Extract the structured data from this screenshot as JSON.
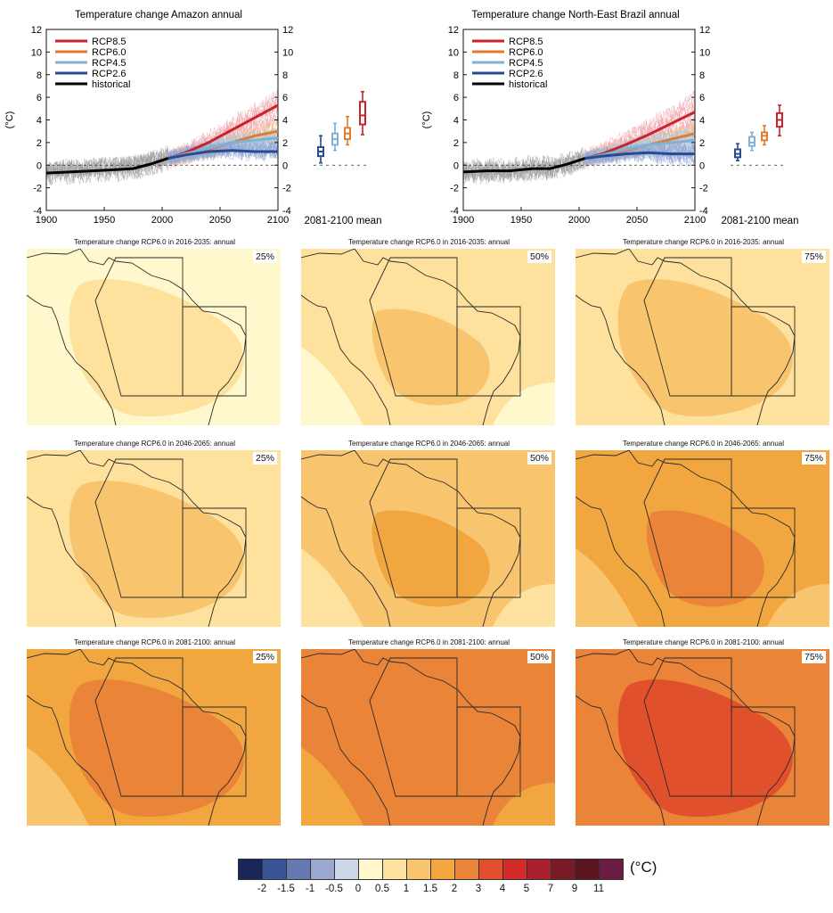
{
  "chart_data": [
    {
      "type": "line",
      "title": "Temperature change Amazon annual",
      "ylabel": "(°C)",
      "xlim": [
        1900,
        2100
      ],
      "ylim": [
        -4,
        12
      ],
      "xticks": [
        "1900",
        "1950",
        "2000",
        "2050",
        "2100"
      ],
      "yticks": [
        "-4",
        "-2",
        "0",
        "2",
        "4",
        "6",
        "8",
        "10",
        "12"
      ],
      "legend_position": "top-left",
      "series": [
        {
          "name": "RCP8.5",
          "color": "#c9232c",
          "x": [
            2005,
            2020,
            2040,
            2060,
            2080,
            2100
          ],
          "values": [
            0.6,
            1.1,
            2.0,
            3.1,
            4.2,
            5.3
          ]
        },
        {
          "name": "RCP6.0",
          "color": "#e07b30",
          "x": [
            2005,
            2020,
            2040,
            2060,
            2080,
            2100
          ],
          "values": [
            0.6,
            0.9,
            1.4,
            2.0,
            2.6,
            3.0
          ]
        },
        {
          "name": "RCP4.5",
          "color": "#7fb1d5",
          "x": [
            2005,
            2020,
            2040,
            2060,
            2080,
            2100
          ],
          "values": [
            0.6,
            1.0,
            1.5,
            2.0,
            2.2,
            2.4
          ]
        },
        {
          "name": "RCP2.6",
          "color": "#2a4a8f",
          "x": [
            2005,
            2020,
            2040,
            2060,
            2080,
            2100
          ],
          "values": [
            0.6,
            0.9,
            1.2,
            1.3,
            1.2,
            1.2
          ]
        },
        {
          "name": "historical",
          "color": "#000000",
          "x": [
            1900,
            1920,
            1940,
            1960,
            1975,
            1990,
            2005
          ],
          "values": [
            -0.7,
            -0.6,
            -0.5,
            -0.4,
            -0.3,
            0.1,
            0.6
          ]
        }
      ],
      "boxplots": {
        "label": "2081-2100 mean",
        "items": [
          {
            "name": "RCP2.6",
            "color": "#2a4a8f",
            "min": 0.2,
            "q1": 0.8,
            "median": 1.2,
            "q3": 1.6,
            "max": 2.6
          },
          {
            "name": "RCP4.5",
            "color": "#7fb1d5",
            "min": 1.3,
            "q1": 1.8,
            "median": 2.3,
            "q3": 2.8,
            "max": 3.7
          },
          {
            "name": "RCP6.0",
            "color": "#e07b30",
            "min": 1.8,
            "q1": 2.3,
            "median": 2.8,
            "q3": 3.3,
            "max": 4.3
          },
          {
            "name": "RCP8.5",
            "color": "#c9232c",
            "min": 2.7,
            "q1": 3.6,
            "median": 4.4,
            "q3": 5.6,
            "max": 6.5
          }
        ]
      }
    },
    {
      "type": "line",
      "title": "Temperature change North-East Brazil annual",
      "ylabel": "(°C)",
      "xlim": [
        1900,
        2100
      ],
      "ylim": [
        -4,
        12
      ],
      "xticks": [
        "1900",
        "1950",
        "2000",
        "2050",
        "2100"
      ],
      "yticks": [
        "-4",
        "-2",
        "0",
        "2",
        "4",
        "6",
        "8",
        "10",
        "12"
      ],
      "legend_position": "top-left",
      "series": [
        {
          "name": "RCP8.5",
          "color": "#c9232c",
          "x": [
            2005,
            2020,
            2040,
            2060,
            2080,
            2100
          ],
          "values": [
            0.6,
            1.0,
            1.8,
            2.7,
            3.7,
            4.7
          ]
        },
        {
          "name": "RCP6.0",
          "color": "#e07b30",
          "x": [
            2005,
            2020,
            2040,
            2060,
            2080,
            2100
          ],
          "values": [
            0.6,
            0.9,
            1.3,
            1.8,
            2.3,
            2.8
          ]
        },
        {
          "name": "RCP4.5",
          "color": "#7fb1d5",
          "x": [
            2005,
            2020,
            2040,
            2060,
            2080,
            2100
          ],
          "values": [
            0.6,
            0.9,
            1.4,
            1.8,
            2.0,
            2.2
          ]
        },
        {
          "name": "RCP2.6",
          "color": "#2a4a8f",
          "x": [
            2005,
            2020,
            2040,
            2060,
            2080,
            2100
          ],
          "values": [
            0.6,
            0.8,
            1.0,
            1.1,
            1.0,
            1.0
          ]
        },
        {
          "name": "historical",
          "color": "#000000",
          "x": [
            1900,
            1920,
            1940,
            1960,
            1975,
            1990,
            2005
          ],
          "values": [
            -0.6,
            -0.5,
            -0.5,
            -0.3,
            -0.3,
            0.1,
            0.6
          ]
        }
      ],
      "boxplots": {
        "label": "2081-2100 mean",
        "items": [
          {
            "name": "RCP2.6",
            "color": "#2a4a8f",
            "min": 0.4,
            "q1": 0.7,
            "median": 1.0,
            "q3": 1.4,
            "max": 1.9
          },
          {
            "name": "RCP4.5",
            "color": "#7fb1d5",
            "min": 1.3,
            "q1": 1.7,
            "median": 2.0,
            "q3": 2.5,
            "max": 2.9
          },
          {
            "name": "RCP6.0",
            "color": "#e07b30",
            "min": 1.8,
            "q1": 2.2,
            "median": 2.6,
            "q3": 2.9,
            "max": 3.5
          },
          {
            "name": "RCP8.5",
            "color": "#c9232c",
            "min": 2.6,
            "q1": 3.4,
            "median": 4.0,
            "q3": 4.6,
            "max": 5.3
          }
        ]
      }
    },
    {
      "type": "heatmap",
      "panels": [
        {
          "title": "Temperature change RCP6.0 in 2016-2035: annual",
          "percentile": "25%",
          "level": 0.5
        },
        {
          "title": "Temperature change RCP6.0 in 2016-2035: annual",
          "percentile": "50%",
          "level": 0.8
        },
        {
          "title": "Temperature change RCP6.0 in 2016-2035: annual",
          "percentile": "75%",
          "level": 1.1
        },
        {
          "title": "Temperature change RCP6.0 in 2046-2065: annual",
          "percentile": "25%",
          "level": 1.1
        },
        {
          "title": "Temperature change RCP6.0 in 2046-2065: annual",
          "percentile": "50%",
          "level": 1.4
        },
        {
          "title": "Temperature change RCP6.0 in 2046-2065: annual",
          "percentile": "75%",
          "level": 1.8
        },
        {
          "title": "Temperature change RCP6.0 in 2081-2100: annual",
          "percentile": "25%",
          "level": 2.0
        },
        {
          "title": "Temperature change RCP6.0 in 2081-2100: annual",
          "percentile": "50%",
          "level": 2.3
        },
        {
          "title": "Temperature change RCP6.0 in 2081-2100: annual",
          "percentile": "75%",
          "level": 3.0
        }
      ],
      "colorbar": {
        "unit": "(°C)",
        "colors": [
          "#1a2558",
          "#3a5596",
          "#6679b0",
          "#99a8cc",
          "#cdd6e6",
          "#fff8cc",
          "#fde19c",
          "#f8c46e",
          "#f1a640",
          "#ea8438",
          "#e0502c",
          "#d32a2a",
          "#a8202c",
          "#7a1a24",
          "#5a1521",
          "#6b1c43"
        ],
        "labels": [
          "-2",
          "-1.5",
          "-1",
          "-0.5",
          "0",
          "0.5",
          "1",
          "1.5",
          "2",
          "3",
          "4",
          "5",
          "7",
          "9",
          "11"
        ]
      }
    }
  ]
}
